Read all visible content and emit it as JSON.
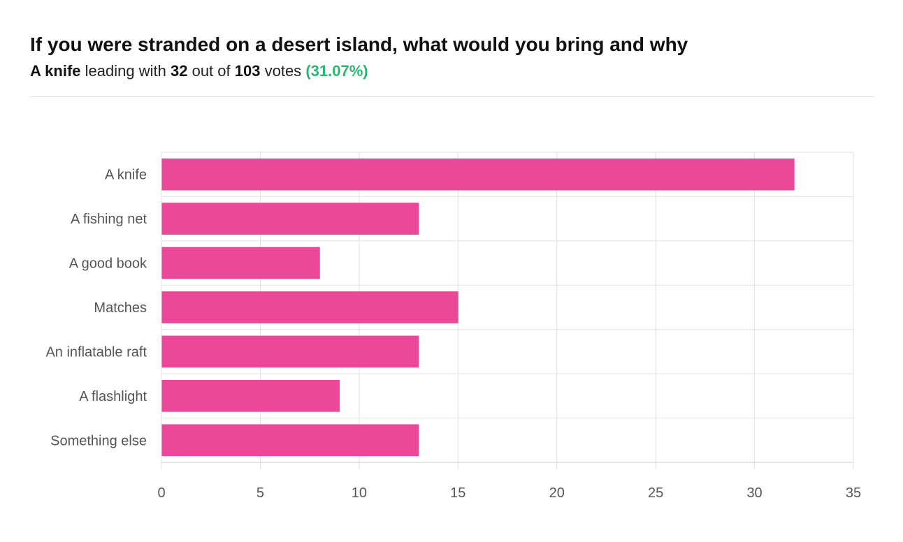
{
  "header": {
    "title": "If you were stranded on a desert island, what would you bring and why",
    "leader_option": "A knife",
    "leading_with_text": "leading with",
    "leader_votes": "32",
    "out_of_text": "out of",
    "total_votes": "103",
    "votes_text": "votes",
    "leader_percent": "(31.07%)"
  },
  "colors": {
    "bar": "#ec4899",
    "grid": "#e2e2e2",
    "axis": "#cccccc",
    "percent": "#2bb673"
  },
  "chart_data": {
    "type": "bar",
    "orientation": "horizontal",
    "categories": [
      "A knife",
      "A fishing net",
      "A good book",
      "Matches",
      "An inflatable raft",
      "A flashlight",
      "Something else"
    ],
    "values": [
      32,
      13,
      8,
      15,
      13,
      9,
      13
    ],
    "xlim": [
      0,
      35
    ],
    "xticks": [
      0,
      5,
      10,
      15,
      20,
      25,
      30,
      35
    ],
    "grid": true,
    "legend": "none"
  }
}
